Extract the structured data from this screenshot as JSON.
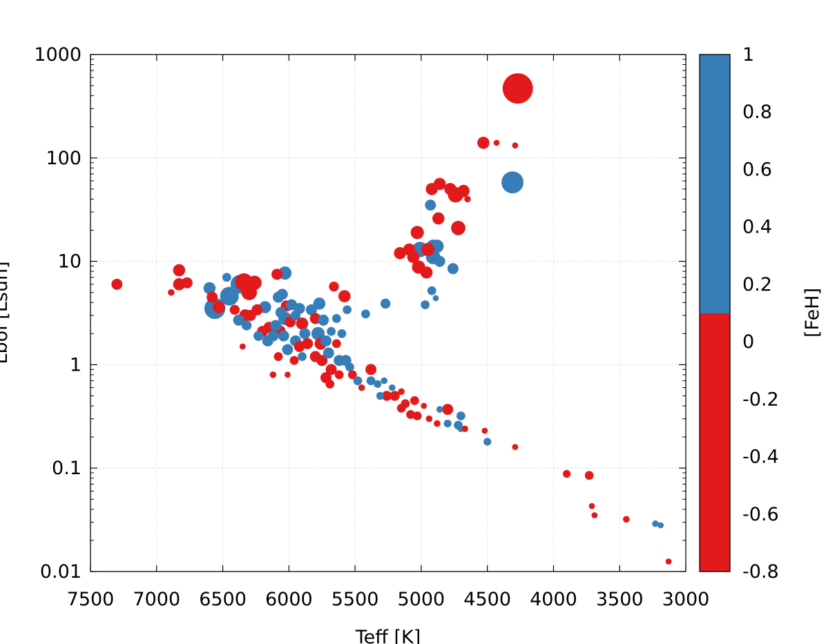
{
  "chart_data": {
    "type": "scatter",
    "title": "",
    "xlabel": "Teff [K]",
    "ylabel": "Lbol [Lsun]",
    "xlim": [
      7500,
      3000
    ],
    "xscale": "linear",
    "ylim": [
      0.01,
      1000
    ],
    "yscale": "log",
    "grid": true,
    "x_ticks": [
      7500,
      7000,
      6500,
      6000,
      5500,
      5000,
      4500,
      4000,
      3500,
      3000
    ],
    "x_tick_labels": [
      "7500",
      "7000",
      "6500",
      "6000",
      "5500",
      "5000",
      "4500",
      "4000",
      "3500",
      "3000"
    ],
    "y_ticks": [
      0.01,
      0.1,
      1,
      10,
      100,
      1000
    ],
    "y_tick_labels": [
      "0.01",
      "0.1",
      "1",
      "10",
      "100",
      "1000"
    ],
    "colorbar": {
      "label": "[FeH]",
      "range": [
        -0.8,
        1
      ],
      "ticks": [
        1,
        0.8,
        0.6,
        0.4,
        0.2,
        0,
        -0.2,
        -0.4,
        -0.6,
        -0.8
      ],
      "tick_labels": [
        "1",
        "0.8",
        "0.6",
        "0.4",
        "0.2",
        "0",
        "-0.2",
        "-0.4",
        "-0.6",
        "-0.8"
      ],
      "split_value": 0.1,
      "colors": {
        "low": "#e31a1c",
        "high": "#377eb8"
      }
    },
    "marker_size_note": "relative marker size (1 = smallest)",
    "points": [
      {
        "teff": 4270,
        "lbol": 470,
        "feh": -0.3,
        "size": 5.5
      },
      {
        "teff": 4310,
        "lbol": 58,
        "feh": 0.5,
        "size": 4
      },
      {
        "teff": 4530,
        "lbol": 140,
        "feh": -0.3,
        "size": 2.2
      },
      {
        "teff": 4430,
        "lbol": 140,
        "feh": -0.3,
        "size": 1.1
      },
      {
        "teff": 4290,
        "lbol": 132,
        "feh": -0.3,
        "size": 1.1
      },
      {
        "teff": 4920,
        "lbol": 50,
        "feh": -0.3,
        "size": 2.2
      },
      {
        "teff": 4860,
        "lbol": 56,
        "feh": -0.3,
        "size": 2.2
      },
      {
        "teff": 4780,
        "lbol": 50,
        "feh": -0.3,
        "size": 2.2
      },
      {
        "teff": 4740,
        "lbol": 44,
        "feh": -0.3,
        "size": 2.8
      },
      {
        "teff": 4680,
        "lbol": 48,
        "feh": -0.3,
        "size": 2.2
      },
      {
        "teff": 4650,
        "lbol": 40,
        "feh": -0.3,
        "size": 1.2
      },
      {
        "teff": 4930,
        "lbol": 35,
        "feh": 0.5,
        "size": 2
      },
      {
        "teff": 4870,
        "lbol": 26,
        "feh": -0.3,
        "size": 2.2
      },
      {
        "teff": 4720,
        "lbol": 21,
        "feh": -0.3,
        "size": 2.6
      },
      {
        "teff": 5030,
        "lbol": 19,
        "feh": -0.3,
        "size": 2.4
      },
      {
        "teff": 4910,
        "lbol": 14,
        "feh": 0.5,
        "size": 2.4
      },
      {
        "teff": 4880,
        "lbol": 14,
        "feh": 0.5,
        "size": 2.4
      },
      {
        "teff": 5010,
        "lbol": 13,
        "feh": 0.5,
        "size": 2.8
      },
      {
        "teff": 5090,
        "lbol": 13,
        "feh": -0.3,
        "size": 2.2
      },
      {
        "teff": 4950,
        "lbol": 13,
        "feh": -0.3,
        "size": 2.4
      },
      {
        "teff": 5160,
        "lbol": 12,
        "feh": -0.3,
        "size": 2.2
      },
      {
        "teff": 4910,
        "lbol": 11,
        "feh": 0.5,
        "size": 2.6
      },
      {
        "teff": 5060,
        "lbol": 11,
        "feh": -0.3,
        "size": 2.2
      },
      {
        "teff": 4860,
        "lbol": 10,
        "feh": 0.5,
        "size": 2
      },
      {
        "teff": 4760,
        "lbol": 8.5,
        "feh": 0.5,
        "size": 2
      },
      {
        "teff": 5020,
        "lbol": 8.8,
        "feh": -0.3,
        "size": 2.4
      },
      {
        "teff": 4960,
        "lbol": 7.8,
        "feh": -0.3,
        "size": 2.2
      },
      {
        "teff": 4920,
        "lbol": 5.2,
        "feh": 0.5,
        "size": 1.6
      },
      {
        "teff": 4890,
        "lbol": 4.4,
        "feh": 0.5,
        "size": 1.1
      },
      {
        "teff": 4970,
        "lbol": 3.8,
        "feh": 0.5,
        "size": 1.6
      },
      {
        "teff": 5270,
        "lbol": 3.9,
        "feh": 0.5,
        "size": 1.8
      },
      {
        "teff": 5420,
        "lbol": 3.1,
        "feh": 0.5,
        "size": 1.6
      },
      {
        "teff": 7300,
        "lbol": 6.0,
        "feh": -0.3,
        "size": 2
      },
      {
        "teff": 6890,
        "lbol": 5.0,
        "feh": -0.3,
        "size": 1.2
      },
      {
        "teff": 6830,
        "lbol": 8.2,
        "feh": -0.3,
        "size": 2.2
      },
      {
        "teff": 6830,
        "lbol": 6.0,
        "feh": -0.3,
        "size": 2.2
      },
      {
        "teff": 6770,
        "lbol": 6.2,
        "feh": -0.3,
        "size": 2
      },
      {
        "teff": 6600,
        "lbol": 5.5,
        "feh": 0.5,
        "size": 2.2
      },
      {
        "teff": 6580,
        "lbol": 4.5,
        "feh": -0.3,
        "size": 2
      },
      {
        "teff": 6560,
        "lbol": 3.5,
        "feh": 0.5,
        "size": 3.8
      },
      {
        "teff": 6530,
        "lbol": 3.6,
        "feh": -0.3,
        "size": 2.2
      },
      {
        "teff": 6470,
        "lbol": 7.0,
        "feh": 0.5,
        "size": 1.6
      },
      {
        "teff": 6450,
        "lbol": 4.6,
        "feh": 0.5,
        "size": 3.4
      },
      {
        "teff": 6370,
        "lbol": 6.0,
        "feh": 0.5,
        "size": 3.4
      },
      {
        "teff": 6340,
        "lbol": 6.3,
        "feh": -0.3,
        "size": 3.2
      },
      {
        "teff": 6300,
        "lbol": 5.0,
        "feh": -0.3,
        "size": 2.8
      },
      {
        "teff": 6260,
        "lbol": 6.2,
        "feh": -0.3,
        "size": 2.6
      },
      {
        "teff": 6410,
        "lbol": 3.4,
        "feh": -0.3,
        "size": 1.8
      },
      {
        "teff": 6380,
        "lbol": 2.7,
        "feh": 0.5,
        "size": 2
      },
      {
        "teff": 6330,
        "lbol": 3.0,
        "feh": -0.3,
        "size": 2.2
      },
      {
        "teff": 6290,
        "lbol": 3.0,
        "feh": -0.3,
        "size": 2
      },
      {
        "teff": 6240,
        "lbol": 3.4,
        "feh": -0.3,
        "size": 2
      },
      {
        "teff": 6180,
        "lbol": 3.6,
        "feh": 0.5,
        "size": 2.2
      },
      {
        "teff": 6320,
        "lbol": 2.4,
        "feh": 0.5,
        "size": 1.8
      },
      {
        "teff": 6350,
        "lbol": 1.5,
        "feh": -0.3,
        "size": 1.1
      },
      {
        "teff": 6230,
        "lbol": 1.9,
        "feh": 0.5,
        "size": 1.8
      },
      {
        "teff": 6200,
        "lbol": 2.1,
        "feh": -0.3,
        "size": 2
      },
      {
        "teff": 6150,
        "lbol": 2.3,
        "feh": -0.3,
        "size": 2
      },
      {
        "teff": 6160,
        "lbol": 1.7,
        "feh": 0.5,
        "size": 2
      },
      {
        "teff": 6120,
        "lbol": 1.9,
        "feh": 0.5,
        "size": 2
      },
      {
        "teff": 6100,
        "lbol": 2.4,
        "feh": 0.5,
        "size": 2
      },
      {
        "teff": 6090,
        "lbol": 7.5,
        "feh": -0.3,
        "size": 2
      },
      {
        "teff": 6030,
        "lbol": 7.7,
        "feh": 0.5,
        "size": 2.4
      },
      {
        "teff": 6080,
        "lbol": 4.5,
        "feh": 0.5,
        "size": 2
      },
      {
        "teff": 6050,
        "lbol": 4.8,
        "feh": 0.5,
        "size": 2
      },
      {
        "teff": 6020,
        "lbol": 3.7,
        "feh": -0.3,
        "size": 2
      },
      {
        "teff": 5980,
        "lbol": 3.8,
        "feh": 0.5,
        "size": 2
      },
      {
        "teff": 6060,
        "lbol": 3.2,
        "feh": 0.5,
        "size": 2
      },
      {
        "teff": 6030,
        "lbol": 2.8,
        "feh": 0.5,
        "size": 2.4
      },
      {
        "teff": 5990,
        "lbol": 2.6,
        "feh": -0.3,
        "size": 2
      },
      {
        "teff": 6070,
        "lbol": 2.1,
        "feh": -0.3,
        "size": 2.2
      },
      {
        "teff": 6040,
        "lbol": 1.9,
        "feh": 0.5,
        "size": 2
      },
      {
        "teff": 6010,
        "lbol": 1.4,
        "feh": 0.5,
        "size": 2
      },
      {
        "teff": 6080,
        "lbol": 1.2,
        "feh": -0.3,
        "size": 1.6
      },
      {
        "teff": 6120,
        "lbol": 0.8,
        "feh": -0.3,
        "size": 1.2
      },
      {
        "teff": 6010,
        "lbol": 0.8,
        "feh": -0.3,
        "size": 1.1
      },
      {
        "teff": 5960,
        "lbol": 1.1,
        "feh": -0.3,
        "size": 1.6
      },
      {
        "teff": 5950,
        "lbol": 3.0,
        "feh": 0.5,
        "size": 1.8
      },
      {
        "teff": 5920,
        "lbol": 3.5,
        "feh": 0.5,
        "size": 2
      },
      {
        "teff": 5900,
        "lbol": 2.5,
        "feh": -0.3,
        "size": 2.2
      },
      {
        "teff": 5880,
        "lbol": 2.0,
        "feh": 0.5,
        "size": 2
      },
      {
        "teff": 5950,
        "lbol": 1.7,
        "feh": 0.5,
        "size": 2
      },
      {
        "teff": 5920,
        "lbol": 1.5,
        "feh": -0.3,
        "size": 2
      },
      {
        "teff": 5900,
        "lbol": 1.2,
        "feh": 0.5,
        "size": 1.6
      },
      {
        "teff": 5860,
        "lbol": 1.6,
        "feh": -0.3,
        "size": 2
      },
      {
        "teff": 5830,
        "lbol": 3.4,
        "feh": 0.5,
        "size": 2
      },
      {
        "teff": 5800,
        "lbol": 2.8,
        "feh": -0.3,
        "size": 2
      },
      {
        "teff": 5770,
        "lbol": 3.9,
        "feh": 0.5,
        "size": 2.2
      },
      {
        "teff": 5740,
        "lbol": 2.7,
        "feh": 0.5,
        "size": 2
      },
      {
        "teff": 5780,
        "lbol": 2.0,
        "feh": 0.5,
        "size": 2.4
      },
      {
        "teff": 5760,
        "lbol": 1.6,
        "feh": -0.3,
        "size": 2.2
      },
      {
        "teff": 5720,
        "lbol": 1.7,
        "feh": 0.5,
        "size": 2
      },
      {
        "teff": 5800,
        "lbol": 1.2,
        "feh": -0.3,
        "size": 2
      },
      {
        "teff": 5750,
        "lbol": 1.1,
        "feh": -0.3,
        "size": 2
      },
      {
        "teff": 5700,
        "lbol": 1.3,
        "feh": 0.5,
        "size": 2
      },
      {
        "teff": 5660,
        "lbol": 5.7,
        "feh": -0.3,
        "size": 1.8
      },
      {
        "teff": 5680,
        "lbol": 2.1,
        "feh": 0.5,
        "size": 1.6
      },
      {
        "teff": 5640,
        "lbol": 2.8,
        "feh": 0.5,
        "size": 1.6
      },
      {
        "teff": 5580,
        "lbol": 4.6,
        "feh": -0.3,
        "size": 2.2
      },
      {
        "teff": 5560,
        "lbol": 3.4,
        "feh": 0.5,
        "size": 1.6
      },
      {
        "teff": 5600,
        "lbol": 2.0,
        "feh": 0.5,
        "size": 1.6
      },
      {
        "teff": 5640,
        "lbol": 1.6,
        "feh": -0.3,
        "size": 1.6
      },
      {
        "teff": 5620,
        "lbol": 1.1,
        "feh": 0.5,
        "size": 2
      },
      {
        "teff": 5680,
        "lbol": 0.9,
        "feh": -0.3,
        "size": 2
      },
      {
        "teff": 5720,
        "lbol": 0.75,
        "feh": -0.3,
        "size": 2
      },
      {
        "teff": 5690,
        "lbol": 0.65,
        "feh": -0.3,
        "size": 1.6
      },
      {
        "teff": 5620,
        "lbol": 0.8,
        "feh": -0.3,
        "size": 1.6
      },
      {
        "teff": 5570,
        "lbol": 1.1,
        "feh": 0.5,
        "size": 2
      },
      {
        "teff": 5540,
        "lbol": 0.95,
        "feh": 0.5,
        "size": 1.6
      },
      {
        "teff": 5520,
        "lbol": 0.8,
        "feh": -0.3,
        "size": 1.6
      },
      {
        "teff": 5480,
        "lbol": 0.7,
        "feh": 0.5,
        "size": 1.6
      },
      {
        "teff": 5450,
        "lbol": 0.6,
        "feh": -0.3,
        "size": 1.2
      },
      {
        "teff": 5380,
        "lbol": 0.9,
        "feh": -0.3,
        "size": 2
      },
      {
        "teff": 5380,
        "lbol": 0.7,
        "feh": 0.5,
        "size": 1.6
      },
      {
        "teff": 5330,
        "lbol": 0.65,
        "feh": 0.5,
        "size": 1.4
      },
      {
        "teff": 5280,
        "lbol": 0.7,
        "feh": 0.5,
        "size": 1.2
      },
      {
        "teff": 5220,
        "lbol": 0.6,
        "feh": 0.5,
        "size": 1.2
      },
      {
        "teff": 5150,
        "lbol": 0.55,
        "feh": -0.3,
        "size": 1.2
      },
      {
        "teff": 5310,
        "lbol": 0.5,
        "feh": 0.5,
        "size": 1.4
      },
      {
        "teff": 5260,
        "lbol": 0.5,
        "feh": -0.3,
        "size": 1.8
      },
      {
        "teff": 5200,
        "lbol": 0.5,
        "feh": -0.3,
        "size": 1.8
      },
      {
        "teff": 5120,
        "lbol": 0.42,
        "feh": -0.3,
        "size": 1.6
      },
      {
        "teff": 5050,
        "lbol": 0.45,
        "feh": -0.3,
        "size": 1.6
      },
      {
        "teff": 5150,
        "lbol": 0.38,
        "feh": -0.3,
        "size": 1.6
      },
      {
        "teff": 5080,
        "lbol": 0.33,
        "feh": -0.3,
        "size": 1.6
      },
      {
        "teff": 5030,
        "lbol": 0.32,
        "feh": -0.3,
        "size": 1.6
      },
      {
        "teff": 4980,
        "lbol": 0.4,
        "feh": -0.3,
        "size": 1.1
      },
      {
        "teff": 4940,
        "lbol": 0.3,
        "feh": -0.3,
        "size": 1.2
      },
      {
        "teff": 4860,
        "lbol": 0.37,
        "feh": 0.5,
        "size": 1.2
      },
      {
        "teff": 4800,
        "lbol": 0.37,
        "feh": -0.3,
        "size": 2
      },
      {
        "teff": 4880,
        "lbol": 0.27,
        "feh": -0.3,
        "size": 1.2
      },
      {
        "teff": 4800,
        "lbol": 0.27,
        "feh": 0.5,
        "size": 1.4
      },
      {
        "teff": 4700,
        "lbol": 0.32,
        "feh": 0.5,
        "size": 1.6
      },
      {
        "teff": 4720,
        "lbol": 0.26,
        "feh": 0.5,
        "size": 1.6
      },
      {
        "teff": 4700,
        "lbol": 0.24,
        "feh": 0.5,
        "size": 1.2
      },
      {
        "teff": 4670,
        "lbol": 0.24,
        "feh": -0.3,
        "size": 1.2
      },
      {
        "teff": 4520,
        "lbol": 0.23,
        "feh": -0.3,
        "size": 1.1
      },
      {
        "teff": 4500,
        "lbol": 0.18,
        "feh": 0.5,
        "size": 1.4
      },
      {
        "teff": 4290,
        "lbol": 0.16,
        "feh": -0.3,
        "size": 1.1
      },
      {
        "teff": 3900,
        "lbol": 0.088,
        "feh": -0.3,
        "size": 1.4
      },
      {
        "teff": 3730,
        "lbol": 0.085,
        "feh": -0.3,
        "size": 1.6
      },
      {
        "teff": 3710,
        "lbol": 0.043,
        "feh": -0.3,
        "size": 1.1
      },
      {
        "teff": 3690,
        "lbol": 0.035,
        "feh": -0.3,
        "size": 1.1
      },
      {
        "teff": 3450,
        "lbol": 0.032,
        "feh": -0.3,
        "size": 1.2
      },
      {
        "teff": 3230,
        "lbol": 0.029,
        "feh": 0.5,
        "size": 1.2
      },
      {
        "teff": 3190,
        "lbol": 0.028,
        "feh": 0.5,
        "size": 1.1
      },
      {
        "teff": 3130,
        "lbol": 0.0125,
        "feh": -0.3,
        "size": 1.1
      }
    ]
  }
}
